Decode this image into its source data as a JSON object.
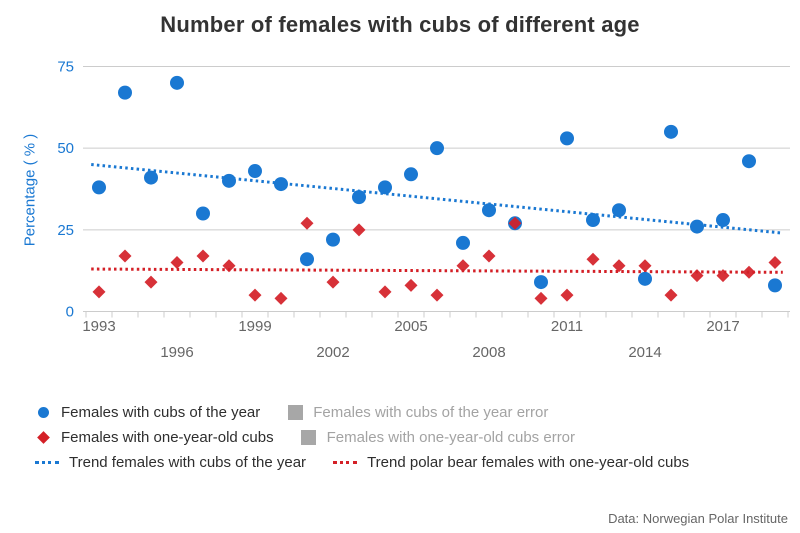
{
  "title": "Number of females with cubs of different age",
  "colors": {
    "blue": "#1a78d2",
    "red": "#d42027",
    "grid": "#cccccc",
    "x_label": "#666666",
    "y_label": "#1a78d2",
    "muted_text": "#a3a3a3",
    "error_swatch": "#a7a7a7",
    "title_text": "#333333"
  },
  "y_axis": {
    "title": "Percentage ( % )",
    "tick_labels": [
      "0",
      "25",
      "50",
      "75"
    ],
    "gridline_values": [
      25,
      50,
      75
    ]
  },
  "x_axis": {
    "row1_labels": [
      "1993",
      "1999",
      "2005",
      "2011",
      "2017"
    ],
    "row2_labels": [
      "1996",
      "2002",
      "2008",
      "2014"
    ]
  },
  "chart_data": {
    "type": "scatter",
    "x": [
      1993,
      1994,
      1995,
      1996,
      1997,
      1998,
      1999,
      2000,
      2001,
      2002,
      2003,
      2004,
      2005,
      2006,
      2007,
      2008,
      2009,
      2010,
      2011,
      2012,
      2013,
      2014,
      2015,
      2016,
      2017,
      2018,
      2019
    ],
    "series": [
      {
        "name": "Females with cubs of the year",
        "marker": "circle",
        "color": "#1a78d2",
        "values": [
          38,
          67,
          41,
          70,
          30,
          40,
          43,
          39,
          16,
          22,
          35,
          38,
          42,
          50,
          21,
          31,
          27,
          9,
          53,
          28,
          31,
          10,
          55,
          26,
          28,
          46,
          8
        ]
      },
      {
        "name": "Females with one-year-old cubs",
        "marker": "diamond",
        "color": "#d42027",
        "values": [
          6,
          17,
          9,
          15,
          17,
          14,
          5,
          4,
          27,
          9,
          25,
          6,
          8,
          5,
          14,
          17,
          27,
          4,
          5,
          16,
          14,
          14,
          5,
          11,
          11,
          12,
          15
        ]
      }
    ],
    "trend_lines": [
      {
        "name": "Trend females with cubs of the year",
        "color": "#1a78d2",
        "x_start": 1992.7,
        "y_start": 45,
        "x_end": 2019.3,
        "y_end": 24
      },
      {
        "name": "Trend polar bear females with one-year-old cubs",
        "color": "#d42027",
        "x_start": 1992.7,
        "y_start": 13,
        "x_end": 2019.3,
        "y_end": 12
      }
    ],
    "xlim": [
      1992.5,
      2019.5
    ],
    "ylim": [
      0,
      75
    ],
    "grid": "horizontal-only",
    "legend_position": "bottom-left"
  },
  "legend": {
    "items": [
      {
        "label": "Females with cubs of the year",
        "icon": "circle",
        "muted": false
      },
      {
        "label": "Females with cubs of the year error",
        "icon": "square",
        "muted": true
      },
      {
        "label": "Females with one-year-old cubs",
        "icon": "diamond",
        "muted": false
      },
      {
        "label": "Females with one-year-old cubs error",
        "icon": "square",
        "muted": true
      },
      {
        "label": "Trend females with cubs of the year",
        "icon": "dotted-line-blue",
        "muted": false
      },
      {
        "label": "Trend polar bear females with one-year-old cubs",
        "icon": "dotted-line-red",
        "muted": false
      }
    ]
  },
  "footer": {
    "credit": "Data: Norwegian Polar Institute"
  }
}
